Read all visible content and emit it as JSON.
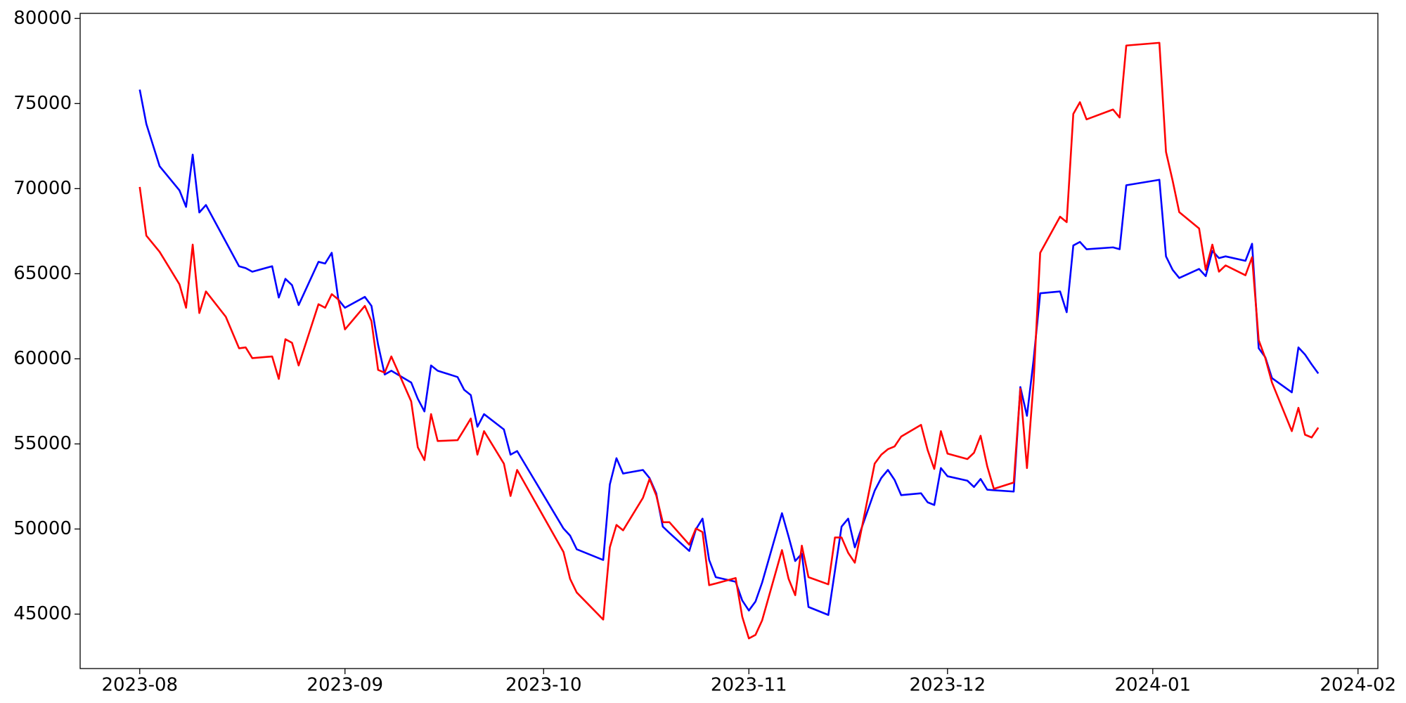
{
  "chart_data": {
    "type": "line",
    "x": [
      "2023-08-01",
      "2023-08-02",
      "2023-08-04",
      "2023-08-07",
      "2023-08-08",
      "2023-08-09",
      "2023-08-10",
      "2023-08-11",
      "2023-08-14",
      "2023-08-16",
      "2023-08-17",
      "2023-08-18",
      "2023-08-21",
      "2023-08-22",
      "2023-08-23",
      "2023-08-24",
      "2023-08-25",
      "2023-08-28",
      "2023-08-29",
      "2023-08-30",
      "2023-08-31",
      "2023-09-01",
      "2023-09-04",
      "2023-09-05",
      "2023-09-06",
      "2023-09-07",
      "2023-09-08",
      "2023-09-11",
      "2023-09-12",
      "2023-09-13",
      "2023-09-14",
      "2023-09-15",
      "2023-09-18",
      "2023-09-19",
      "2023-09-20",
      "2023-09-21",
      "2023-09-22",
      "2023-09-25",
      "2023-09-26",
      "2023-09-27",
      "2023-10-04",
      "2023-10-05",
      "2023-10-06",
      "2023-10-10",
      "2023-10-11",
      "2023-10-12",
      "2023-10-13",
      "2023-10-16",
      "2023-10-17",
      "2023-10-18",
      "2023-10-19",
      "2023-10-20",
      "2023-10-23",
      "2023-10-24",
      "2023-10-25",
      "2023-10-26",
      "2023-10-27",
      "2023-10-30",
      "2023-10-31",
      "2023-11-01",
      "2023-11-02",
      "2023-11-03",
      "2023-11-06",
      "2023-11-07",
      "2023-11-08",
      "2023-11-09",
      "2023-11-10",
      "2023-11-13",
      "2023-11-14",
      "2023-11-15",
      "2023-11-16",
      "2023-11-17",
      "2023-11-20",
      "2023-11-21",
      "2023-11-22",
      "2023-11-23",
      "2023-11-24",
      "2023-11-27",
      "2023-11-28",
      "2023-11-29",
      "2023-11-30",
      "2023-12-01",
      "2023-12-04",
      "2023-12-05",
      "2023-12-06",
      "2023-12-07",
      "2023-12-08",
      "2023-12-11",
      "2023-12-12",
      "2023-12-13",
      "2023-12-14",
      "2023-12-15",
      "2023-12-18",
      "2023-12-19",
      "2023-12-20",
      "2023-12-21",
      "2023-12-22",
      "2023-12-26",
      "2023-12-27",
      "2023-12-28",
      "2024-01-02",
      "2024-01-03",
      "2024-01-04",
      "2024-01-05",
      "2024-01-08",
      "2024-01-09",
      "2024-01-10",
      "2024-01-11",
      "2024-01-12",
      "2024-01-15",
      "2024-01-16",
      "2024-01-17",
      "2024-01-18",
      "2024-01-19",
      "2024-01-22",
      "2024-01-23",
      "2024-01-24",
      "2024-01-25",
      "2024-01-26"
    ],
    "series": [
      {
        "color": "#0000ff",
        "values": [
          75820,
          73800,
          71320,
          69900,
          68930,
          72000,
          68600,
          69040,
          66880,
          65440,
          65330,
          65120,
          65440,
          63600,
          64700,
          64330,
          63160,
          65700,
          65600,
          66230,
          63480,
          63000,
          63640,
          63110,
          60830,
          59080,
          59300,
          58610,
          57650,
          56910,
          59610,
          59300,
          58930,
          58180,
          57870,
          56010,
          56750,
          55850,
          54370,
          54580,
          50030,
          49610,
          48810,
          48180,
          52620,
          54160,
          53260,
          53470,
          52990,
          52100,
          50140,
          49770,
          48710,
          49980,
          50610,
          48180,
          47170,
          46900,
          45800,
          45210,
          45740,
          46850,
          50930,
          49550,
          48120,
          48550,
          45420,
          44950,
          47550,
          50140,
          50610,
          48920,
          52250,
          53000,
          53470,
          52890,
          51990,
          52100,
          51570,
          51410,
          53580,
          53100,
          52840,
          52470,
          52940,
          52310,
          52280,
          52200,
          58340,
          56650,
          59930,
          63850,
          63960,
          62740,
          66660,
          66870,
          66440,
          66550,
          66440,
          70200,
          70520,
          66020,
          65230,
          64750,
          65280,
          64860,
          66340,
          65920,
          66020,
          65760,
          66760,
          60620,
          60090,
          58870,
          58030,
          60670,
          60250,
          59670,
          59140
        ]
      },
      {
        "color": "#ff0000",
        "values": [
          70100,
          67240,
          66290,
          64380,
          63000,
          66710,
          62690,
          63960,
          62470,
          60620,
          60670,
          60040,
          60140,
          58820,
          61150,
          60940,
          59610,
          63210,
          63000,
          63800,
          63480,
          61730,
          63110,
          62210,
          59350,
          59190,
          60140,
          57500,
          54800,
          54050,
          56750,
          55170,
          55220,
          55850,
          56490,
          54370,
          55750,
          53840,
          51940,
          53470,
          48650,
          47070,
          46270,
          44680,
          48920,
          50240,
          49920,
          51830,
          52940,
          51990,
          50400,
          50400,
          49080,
          50030,
          49820,
          46700,
          46800,
          47120,
          44840,
          43570,
          43780,
          44630,
          48760,
          47070,
          46110,
          49020,
          47170,
          46750,
          49500,
          49500,
          48600,
          48020,
          53840,
          54370,
          54690,
          54850,
          55430,
          56120,
          54640,
          53530,
          55750,
          54430,
          54110,
          54480,
          55480,
          53680,
          52360,
          52730,
          58240,
          53580,
          58610,
          66230,
          68350,
          68030,
          74390,
          75080,
          74070,
          74650,
          74180,
          78410,
          78570,
          72160,
          70470,
          68620,
          67660,
          65230,
          66710,
          65120,
          65490,
          64910,
          65970,
          61100,
          60040,
          58610,
          55750,
          57120,
          55540,
          55380,
          55960
        ]
      }
    ],
    "xlim": [
      "2023-07-23",
      "2024-02-04"
    ],
    "xticks": [
      "2023-08",
      "2023-09",
      "2023-10",
      "2023-11",
      "2023-12",
      "2024-01",
      "2024-02"
    ],
    "ylim": [
      41800,
      80300
    ],
    "yticks": [
      45000,
      50000,
      55000,
      60000,
      65000,
      70000,
      75000,
      80000
    ],
    "grid": false
  }
}
